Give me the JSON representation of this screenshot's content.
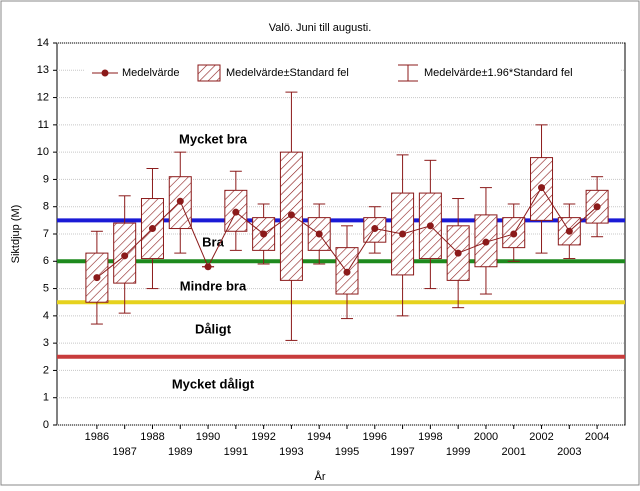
{
  "chart_data": {
    "type": "box",
    "title": "Valö. Juni till augusti.",
    "x_label": "År",
    "y_label": "Siktdjup (M)",
    "categories": [
      "1986",
      "1987",
      "1988",
      "1989",
      "1990",
      "1991",
      "1992",
      "1993",
      "1994",
      "1995",
      "1996",
      "1997",
      "1998",
      "1999",
      "2000",
      "2001",
      "2002",
      "2003",
      "2004"
    ],
    "series": [
      {
        "name": "Medelvärde",
        "color": "#8b1a1a",
        "values": [
          5.4,
          6.2,
          7.2,
          8.2,
          5.8,
          7.8,
          7.0,
          7.7,
          7.0,
          5.6,
          7.2,
          7.0,
          7.3,
          6.3,
          6.7,
          7.0,
          8.7,
          7.1,
          8.0
        ]
      },
      {
        "name": "Medelvärde±Standard fel",
        "color": "#8b1a1a",
        "low": [
          4.5,
          5.2,
          6.1,
          7.2,
          5.8,
          7.1,
          6.4,
          5.3,
          6.4,
          4.8,
          6.7,
          5.5,
          6.1,
          5.3,
          5.8,
          6.5,
          7.5,
          6.6,
          7.4
        ],
        "high": [
          6.3,
          7.4,
          8.3,
          9.1,
          5.8,
          8.6,
          7.6,
          10.0,
          7.6,
          6.5,
          7.6,
          8.5,
          8.5,
          7.3,
          7.7,
          7.6,
          9.8,
          7.6,
          8.6
        ]
      },
      {
        "name": "Medelvärde±1.96*Standard fel",
        "color": "#8b1a1a",
        "low": [
          3.7,
          4.1,
          5.0,
          6.3,
          5.8,
          6.4,
          5.9,
          3.1,
          5.9,
          3.9,
          6.3,
          4.0,
          5.0,
          4.3,
          4.8,
          6.0,
          6.3,
          6.1,
          6.9
        ],
        "high": [
          7.1,
          8.4,
          9.4,
          10.0,
          5.8,
          9.3,
          8.1,
          12.2,
          8.1,
          7.3,
          8.0,
          9.9,
          9.7,
          8.3,
          8.7,
          8.1,
          11.0,
          8.1,
          9.1
        ]
      }
    ],
    "reference_lines": [
      {
        "value": 7.5,
        "color": "#1a1ad6"
      },
      {
        "value": 6,
        "color": "#1e8a1e"
      },
      {
        "value": 4.5,
        "color": "#e6d21e"
      },
      {
        "value": 2.5,
        "color": "#c83c3c"
      }
    ],
    "annotations": [
      "Mycket bra",
      "Bra",
      "Mindre bra",
      "Dåligt",
      "Mycket dåligt"
    ],
    "ylim": [
      0,
      14
    ],
    "yticks": [
      0,
      1,
      2,
      3,
      4,
      5,
      6,
      7,
      8,
      9,
      10,
      11,
      12,
      13,
      14
    ],
    "grid": true
  }
}
